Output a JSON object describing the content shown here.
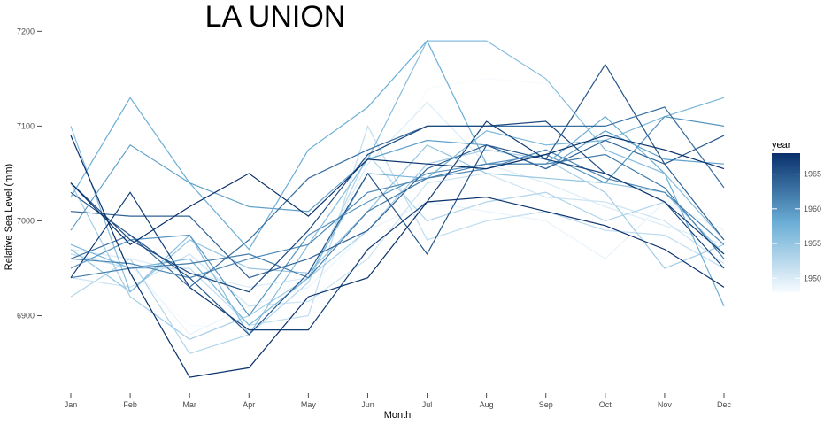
{
  "chart_data": {
    "type": "line",
    "title": "LA UNION",
    "xlabel": "Month",
    "ylabel": "Relative Sea Level (mm)",
    "categories": [
      "Jan",
      "Feb",
      "Mar",
      "Apr",
      "May",
      "Jun",
      "Jul",
      "Aug",
      "Sep",
      "Oct",
      "Nov",
      "Dec"
    ],
    "yticks": [
      6900,
      7000,
      7100,
      7200
    ],
    "ylim": [
      6822,
      7205
    ],
    "grid": false,
    "legend": {
      "title": "year",
      "position": "right",
      "type": "colorbar",
      "labels": [
        1950,
        1955,
        1960,
        1965
      ],
      "range": [
        1948,
        1968
      ],
      "color_low": "#f7fbff",
      "color_high": "#08306b"
    },
    "series": [
      {
        "year": 1948,
        "values": [
          6960,
          6945,
          6890,
          6885,
          6905,
          7000,
          7140,
          7150,
          7145,
          7085,
          7050,
          6990
        ]
      },
      {
        "year": 1949,
        "values": [
          6965,
          6955,
          6880,
          6910,
          6930,
          6990,
          7020,
          7010,
          7000,
          6960,
          7020,
          6990
        ]
      },
      {
        "year": 1950,
        "values": [
          6970,
          6960,
          6945,
          6930,
          6940,
          7060,
          7125,
          7060,
          7040,
          7015,
          6995,
          6975
        ]
      },
      {
        "year": 1951,
        "values": [
          6940,
          6930,
          6965,
          6910,
          6915,
          6960,
          7040,
          7050,
          7025,
          7020,
          7000,
          6955
        ]
      },
      {
        "year": 1952,
        "values": [
          6965,
          6950,
          6950,
          6890,
          6900,
          7100,
          6980,
          7000,
          7010,
          6990,
          6985,
          6950
        ]
      },
      {
        "year": 1953,
        "values": [
          6920,
          6960,
          6860,
          6880,
          6935,
          7070,
          7000,
          7020,
          7030,
          7000,
          7020,
          6965
        ]
      },
      {
        "year": 1954,
        "values": [
          7040,
          6920,
          6875,
          6900,
          6940,
          6990,
          7060,
          7075,
          7065,
          7030,
          6950,
          6975
        ]
      },
      {
        "year": 1955,
        "values": [
          6970,
          6925,
          6980,
          6950,
          6945,
          7010,
          7080,
          7050,
          7045,
          7040,
          7030,
          6965
        ]
      },
      {
        "year": 1956,
        "values": [
          7100,
          6925,
          6985,
          6880,
          6975,
          7065,
          7190,
          7190,
          7150,
          7075,
          7050,
          6980
        ]
      },
      {
        "year": 1957,
        "values": [
          6975,
          6950,
          6960,
          6890,
          6940,
          7050,
          7045,
          7095,
          7080,
          7085,
          7110,
          7130
        ]
      },
      {
        "year": 1958,
        "values": [
          7025,
          7130,
          7040,
          6970,
          7075,
          7120,
          7190,
          7060,
          7060,
          7110,
          7050,
          6910
        ]
      },
      {
        "year": 1959,
        "values": [
          6990,
          7080,
          7040,
          7015,
          7010,
          7065,
          7085,
          7080,
          7055,
          7095,
          7065,
          7060
        ]
      },
      {
        "year": 1960,
        "values": [
          6950,
          6980,
          6985,
          6900,
          6985,
          7020,
          7050,
          7060,
          7070,
          7040,
          7110,
          7100
        ]
      },
      {
        "year": 1961,
        "values": [
          6960,
          6955,
          6940,
          6960,
          6975,
          7030,
          7045,
          7055,
          7075,
          7045,
          7030,
          6975
        ]
      },
      {
        "year": 1962,
        "values": [
          6940,
          6950,
          6955,
          6965,
          6940,
          7010,
          7045,
          7060,
          7060,
          7070,
          7035,
          6960
        ]
      },
      {
        "year": 1963,
        "values": [
          6960,
          6985,
          6930,
          6980,
          7045,
          7075,
          7100,
          7100,
          7100,
          7100,
          7120,
          7035
        ]
      },
      {
        "year": 1964,
        "values": [
          7010,
          7005,
          7005,
          6940,
          6960,
          6990,
          7055,
          7080,
          7055,
          7085,
          7060,
          6980
        ]
      },
      {
        "year": 1965,
        "values": [
          7030,
          6985,
          6940,
          6880,
          6945,
          7050,
          6965,
          7080,
          7065,
          7165,
          7060,
          7090
        ]
      },
      {
        "year": 1966,
        "values": [
          7040,
          6980,
          6945,
          6925,
          6990,
          7070,
          7100,
          7100,
          7105,
          7050,
          7020,
          6950
        ]
      },
      {
        "year": 1967,
        "values": [
          6940,
          7030,
          6930,
          6885,
          6885,
          6970,
          7020,
          7105,
          7065,
          7050,
          7020,
          6965
        ]
      },
      {
        "year": 1968,
        "values": [
          7090,
          6945,
          6835,
          6845,
          6920,
          6940,
          7020,
          7025,
          7010,
          6995,
          6970,
          6930
        ]
      },
      {
        "year": 1968,
        "values": [
          7040,
          6975,
          7015,
          7050,
          7005,
          7065,
          7060,
          7055,
          7070,
          7090,
          7075,
          7055
        ]
      }
    ]
  }
}
